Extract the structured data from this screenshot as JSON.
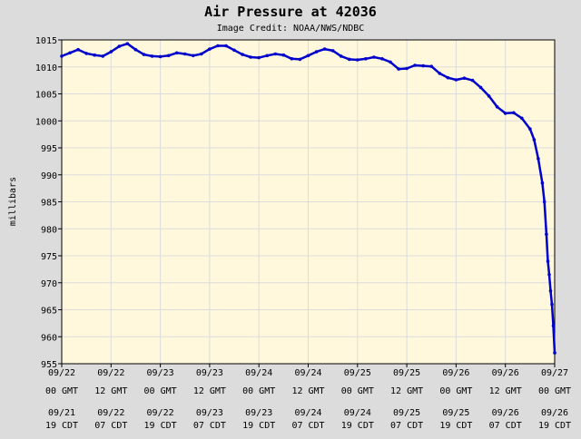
{
  "chart_data": {
    "type": "line",
    "title": "Air Pressure at 42036",
    "subtitle": "Image Credit: NOAA/NWS/NDBC",
    "ylabel": "millibars",
    "xlabel": "",
    "ylim": [
      955,
      1015
    ],
    "yticks": [
      1015,
      1010,
      1005,
      1000,
      995,
      990,
      985,
      980,
      975,
      970,
      965,
      960,
      955
    ],
    "xlim": [
      "09/22 00 GMT",
      "09/27 00 GMT"
    ],
    "xticks": [
      {
        "gmt": [
          "09/22",
          "00 GMT"
        ],
        "cdt": [
          "09/21",
          "19 CDT"
        ]
      },
      {
        "gmt": [
          "09/22",
          "12 GMT"
        ],
        "cdt": [
          "09/22",
          "07 CDT"
        ]
      },
      {
        "gmt": [
          "09/23",
          "00 GMT"
        ],
        "cdt": [
          "09/22",
          "19 CDT"
        ]
      },
      {
        "gmt": [
          "09/23",
          "12 GMT"
        ],
        "cdt": [
          "09/23",
          "07 CDT"
        ]
      },
      {
        "gmt": [
          "09/24",
          "00 GMT"
        ],
        "cdt": [
          "09/23",
          "19 CDT"
        ]
      },
      {
        "gmt": [
          "09/24",
          "12 GMT"
        ],
        "cdt": [
          "09/24",
          "07 CDT"
        ]
      },
      {
        "gmt": [
          "09/25",
          "00 GMT"
        ],
        "cdt": [
          "09/24",
          "19 CDT"
        ]
      },
      {
        "gmt": [
          "09/25",
          "12 GMT"
        ],
        "cdt": [
          "09/25",
          "07 CDT"
        ]
      },
      {
        "gmt": [
          "09/26",
          "00 GMT"
        ],
        "cdt": [
          "09/25",
          "19 CDT"
        ]
      },
      {
        "gmt": [
          "09/26",
          "12 GMT"
        ],
        "cdt": [
          "09/26",
          "07 CDT"
        ]
      },
      {
        "gmt": [
          "09/27",
          "00 GMT"
        ],
        "cdt": [
          "09/26",
          "19 CDT"
        ]
      }
    ],
    "grid": true,
    "colors": {
      "line": "#0000cc",
      "plot_bg": "#fff8dc",
      "page_bg": "#dcdcdc",
      "grid": "#dcdcdc"
    },
    "series": [
      {
        "x": [
          "09/22 00:00",
          "09/22 02:00",
          "09/22 04:00",
          "09/22 06:00",
          "09/22 08:00",
          "09/22 10:00",
          "09/22 12:00",
          "09/22 14:00",
          "09/22 16:00",
          "09/22 18:00",
          "09/22 20:00",
          "09/22 22:00",
          "09/23 00:00",
          "09/23 02:00",
          "09/23 04:00",
          "09/23 06:00",
          "09/23 08:00",
          "09/23 10:00",
          "09/23 12:00",
          "09/23 14:00",
          "09/23 16:00",
          "09/23 18:00",
          "09/23 20:00",
          "09/23 22:00",
          "09/24 00:00",
          "09/24 02:00",
          "09/24 04:00",
          "09/24 06:00",
          "09/24 08:00",
          "09/24 10:00",
          "09/24 12:00",
          "09/24 14:00",
          "09/24 16:00",
          "09/24 18:00",
          "09/24 20:00",
          "09/24 22:00",
          "09/25 00:00",
          "09/25 02:00",
          "09/25 04:00",
          "09/25 06:00",
          "09/25 08:00",
          "09/25 10:00",
          "09/25 12:00",
          "09/25 14:00",
          "09/25 16:00",
          "09/25 18:00",
          "09/25 20:00",
          "09/25 22:00",
          "09/26 00:00",
          "09/26 02:00",
          "09/26 04:00",
          "09/26 06:00",
          "09/26 08:00",
          "09/26 10:00",
          "09/26 12:00",
          "09/26 14:00",
          "09/26 16:00",
          "09/26 18:00",
          "09/26 19:00",
          "09/26 20:00",
          "09/26 21:00",
          "09/26 21:30",
          "09/26 22:00",
          "09/26 22:20",
          "09/26 22:40",
          "09/26 23:00",
          "09/26 23:20",
          "09/26 23:40",
          "09/27 00:00"
        ],
        "values": [
          1012,
          1012.6,
          1013.2,
          1012.5,
          1012.2,
          1012,
          1012.8,
          1013.8,
          1014.3,
          1013.2,
          1012.3,
          1012,
          1011.9,
          1012.1,
          1012.6,
          1012.4,
          1012.1,
          1012.4,
          1013.3,
          1013.9,
          1013.9,
          1013.1,
          1012.3,
          1011.8,
          1011.7,
          1012.1,
          1012.4,
          1012.2,
          1011.5,
          1011.4,
          1012.1,
          1012.8,
          1013.3,
          1013.0,
          1012.0,
          1011.4,
          1011.3,
          1011.5,
          1011.8,
          1011.5,
          1010.9,
          1009.6,
          1009.7,
          1010.3,
          1010.2,
          1010.1,
          1008.8,
          1008.0,
          1007.6,
          1007.9,
          1007.5,
          1006.2,
          1004.6,
          1002.6,
          1001.4,
          1001.5,
          1000.5,
          998.5,
          996.5,
          993.0,
          988.5,
          985.0,
          979.0,
          974.0,
          971.5,
          968.5,
          966.0,
          962.0,
          957.0
        ]
      }
    ]
  }
}
